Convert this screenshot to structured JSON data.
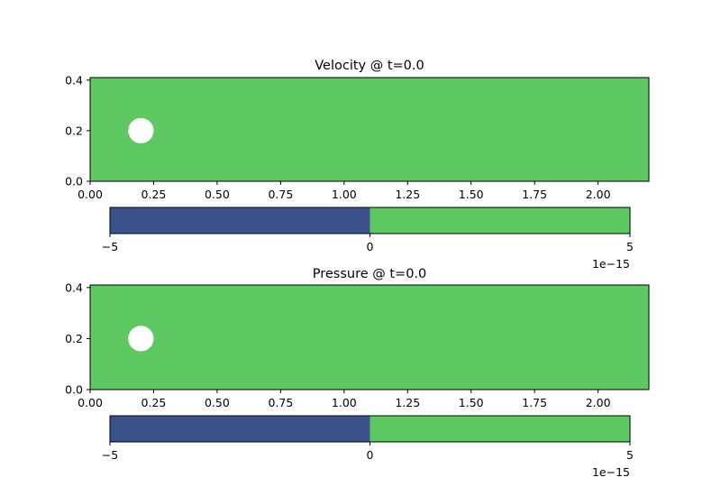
{
  "chart_data": [
    {
      "type": "heatmap",
      "title": "Velocity @ t=0.0",
      "xlabel": "",
      "ylabel": "",
      "xlim": [
        0.0,
        2.2
      ],
      "ylim": [
        0.0,
        0.41
      ],
      "xticks": [
        "0.00",
        "0.25",
        "0.50",
        "0.75",
        "1.00",
        "1.25",
        "1.50",
        "1.75",
        "2.00"
      ],
      "xtick_values": [
        0.0,
        0.25,
        0.5,
        0.75,
        1.0,
        1.25,
        1.5,
        1.75,
        2.0
      ],
      "yticks": [
        "0.0",
        "0.2",
        "0.4"
      ],
      "ytick_values": [
        0.0,
        0.2,
        0.4
      ],
      "field_value": 0,
      "field_color": "#5ec962",
      "obstacle": {
        "shape": "circle",
        "cx": 0.2,
        "cy": 0.2,
        "r": 0.05,
        "color": "#ffffff"
      },
      "colorbar": {
        "range": [
          -5,
          5
        ],
        "ticks": [
          "−5",
          "0",
          "5"
        ],
        "tick_values": [
          -5,
          0,
          5
        ],
        "offset_label": "1e−15",
        "bins": [
          {
            "from": -5,
            "to": 0,
            "color": "#3b528b"
          },
          {
            "from": 0,
            "to": 5,
            "color": "#5ec962"
          }
        ]
      }
    },
    {
      "type": "heatmap",
      "title": "Pressure @ t=0.0",
      "xlabel": "",
      "ylabel": "",
      "xlim": [
        0.0,
        2.2
      ],
      "ylim": [
        0.0,
        0.41
      ],
      "xticks": [
        "0.00",
        "0.25",
        "0.50",
        "0.75",
        "1.00",
        "1.25",
        "1.50",
        "1.75",
        "2.00"
      ],
      "xtick_values": [
        0.0,
        0.25,
        0.5,
        0.75,
        1.0,
        1.25,
        1.5,
        1.75,
        2.0
      ],
      "yticks": [
        "0.0",
        "0.2",
        "0.4"
      ],
      "ytick_values": [
        0.0,
        0.2,
        0.4
      ],
      "field_value": 0,
      "field_color": "#5ec962",
      "obstacle": {
        "shape": "circle",
        "cx": 0.2,
        "cy": 0.2,
        "r": 0.05,
        "color": "#ffffff"
      },
      "colorbar": {
        "range": [
          -5,
          5
        ],
        "ticks": [
          "−5",
          "0",
          "5"
        ],
        "tick_values": [
          -5,
          0,
          5
        ],
        "offset_label": "1e−15",
        "bins": [
          {
            "from": -5,
            "to": 0,
            "color": "#3b528b"
          },
          {
            "from": 0,
            "to": 5,
            "color": "#5ec962"
          }
        ]
      }
    }
  ]
}
